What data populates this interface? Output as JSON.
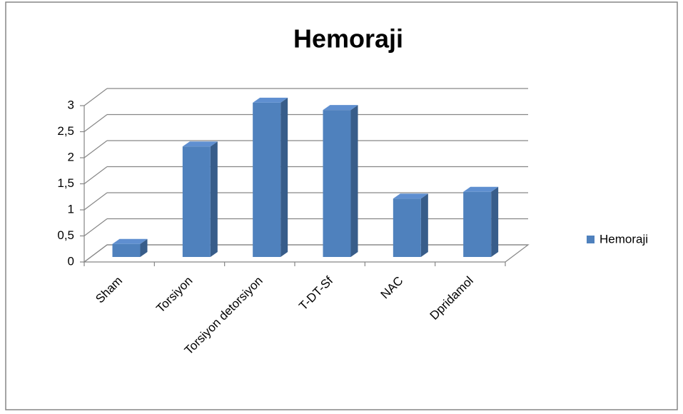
{
  "chart_data": {
    "type": "bar3d",
    "title": "Hemoraji",
    "categories": [
      "Sham",
      "Torsiyon",
      "Torsiyon detorsiyon",
      "T-DT-Sf",
      "NAC",
      "Dpridamol"
    ],
    "series": [
      {
        "name": "Hemoraji",
        "color": "#4f81bd",
        "values": [
          0.25,
          2.12,
          2.96,
          2.82,
          1.12,
          1.25
        ]
      }
    ],
    "ylim": [
      0,
      3
    ],
    "yticks": [
      0,
      {
        "value": 0.5,
        "label": "0,5"
      },
      1,
      {
        "value": 1.5,
        "label": "1,5"
      },
      2,
      {
        "value": 2.5,
        "label": "2,5"
      },
      3
    ],
    "grid": true,
    "legend": "right"
  }
}
